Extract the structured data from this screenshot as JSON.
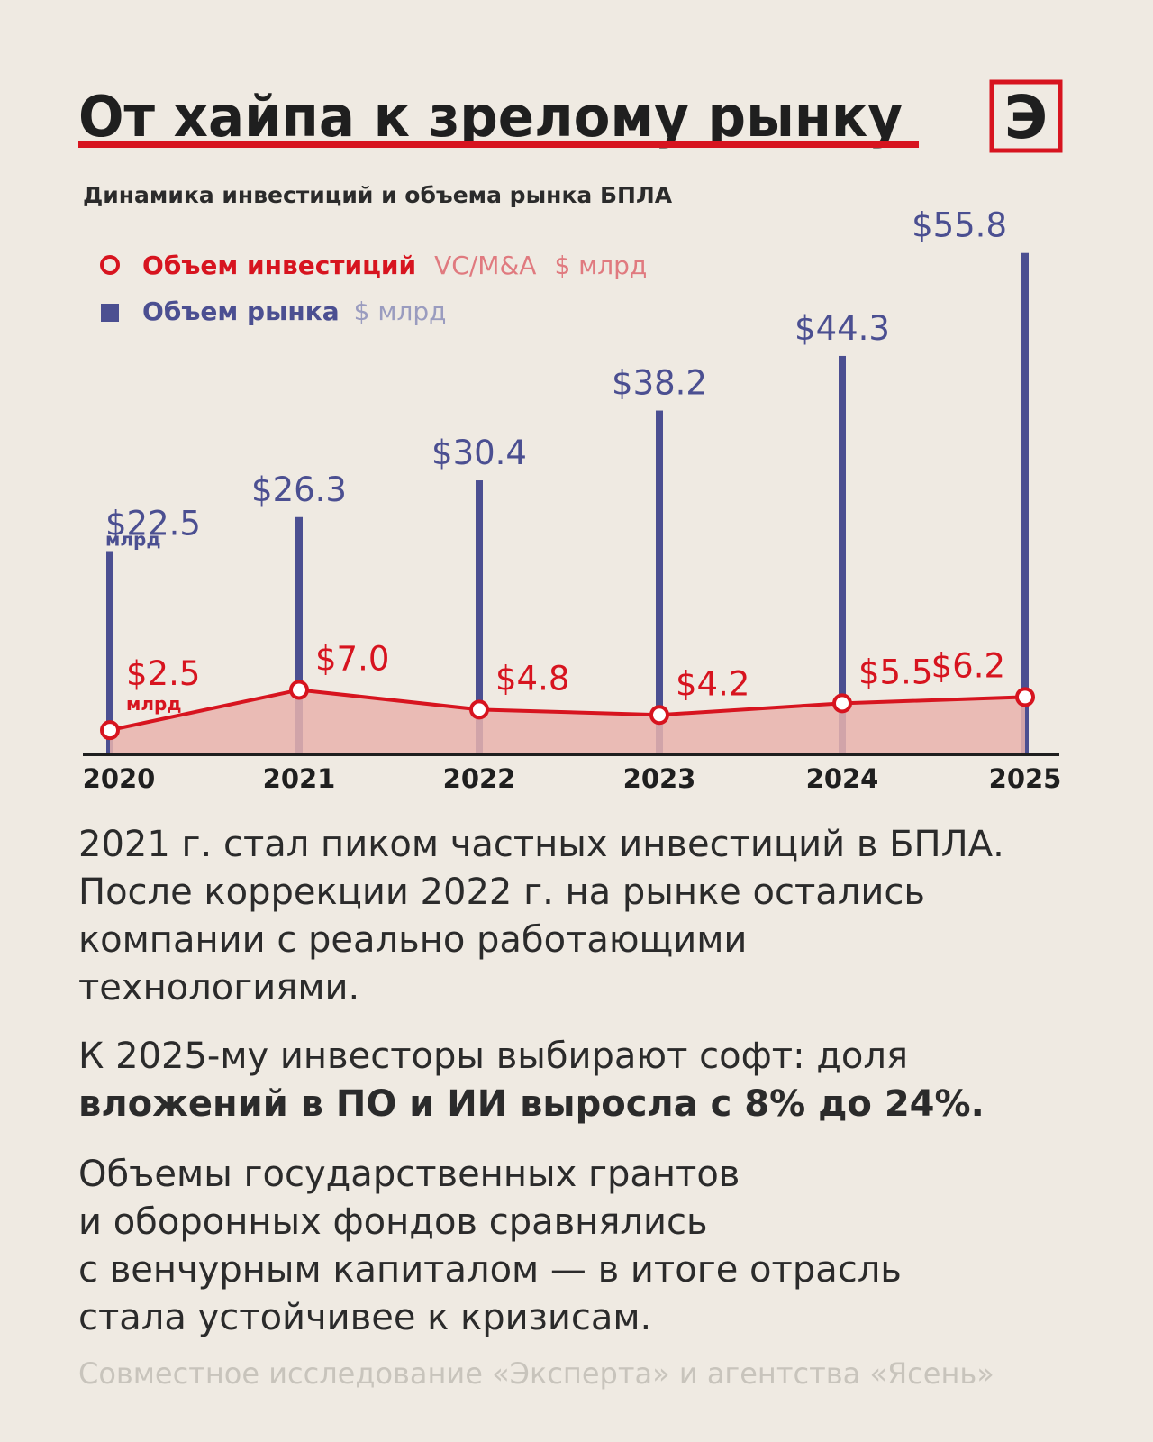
{
  "chart_data": {
    "type": "bar_line",
    "title": "От хайпа к зрелому рынку",
    "logo": "Э",
    "subtitle": "Динамика инвестиций и объема рынка БПЛА",
    "unit_short": "млрд",
    "categories": [
      "2020",
      "2021",
      "2022",
      "2023",
      "2024",
      "2025"
    ],
    "ylim": [
      0,
      60
    ],
    "series": [
      {
        "name": "Объем инвестиций",
        "qualifier": "VC/M&A",
        "unit": "$ млрд",
        "type": "line",
        "color": "#d7141f",
        "area_color": "#e9b3ad",
        "values": [
          2.5,
          7.0,
          4.8,
          4.2,
          5.5,
          6.2
        ],
        "value_labels": [
          "$2.5",
          "$7.0",
          "$4.8",
          "$4.2",
          "$5.5",
          "$6.2"
        ]
      },
      {
        "name": "Объем рынка",
        "unit": "$ млрд",
        "type": "bar",
        "color": "#4b4f91",
        "values": [
          22.5,
          26.3,
          30.4,
          38.2,
          44.3,
          55.8
        ],
        "value_labels": [
          "$22.5",
          "$26.3",
          "$30.4",
          "$38.2",
          "$44.3",
          "$55.8"
        ]
      }
    ]
  },
  "text": {
    "paragraph_1": [
      "2021 г. стал пиком частных инвестиций в БПЛА.",
      "После коррекции 2022 г. на рынке остались",
      "компании с реально работающими",
      "технологиями."
    ],
    "paragraph_2": [
      "К 2025-му инвесторы выбирают софт: доля"
    ],
    "paragraph_2_bold": [
      "вложений в ПО и ИИ выросла с 8% до 24%."
    ],
    "paragraph_3": [
      "Объемы государственных грантов",
      "и оборонных фондов сравнялись",
      "с венчурным капиталом — в итоге отрасль",
      "стала устойчивее к кризисам."
    ],
    "source": "Совместное исследование «Эксперта» и агентства «Ясень»"
  }
}
